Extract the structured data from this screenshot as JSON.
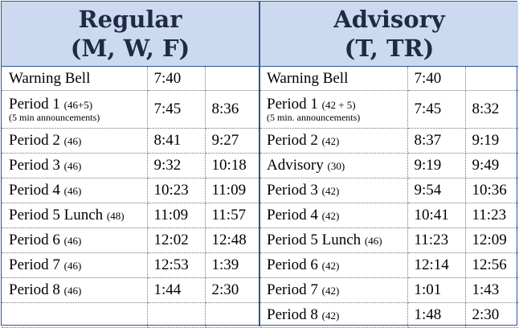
{
  "regular": {
    "title_line1": "Regular",
    "title_line2": "(M, W, F)",
    "rows": [
      {
        "name": "Warning Bell",
        "minutes": "",
        "note": "",
        "start": "7:40",
        "end": ""
      },
      {
        "name": "Period 1",
        "minutes": "(46+5)",
        "note": "(5 min announcements)",
        "start": "7:45",
        "end": "8:36"
      },
      {
        "name": "Period 2",
        "minutes": "(46)",
        "note": "",
        "start": "8:41",
        "end": "9:27"
      },
      {
        "name": "Period 3",
        "minutes": "(46)",
        "note": "",
        "start": "9:32",
        "end": "10:18"
      },
      {
        "name": "Period 4",
        "minutes": "(46)",
        "note": "",
        "start": "10:23",
        "end": "11:09"
      },
      {
        "name": "Period 5 Lunch",
        "minutes": "(48)",
        "note": "",
        "start": "11:09",
        "end": "11:57"
      },
      {
        "name": "Period 6",
        "minutes": "(46)",
        "note": "",
        "start": "12:02",
        "end": "12:48"
      },
      {
        "name": "Period 7",
        "minutes": "(46)",
        "note": "",
        "start": "12:53",
        "end": "1:39"
      },
      {
        "name": "Period 8",
        "minutes": "(46)",
        "note": "",
        "start": "1:44",
        "end": "2:30"
      },
      {
        "name": "",
        "minutes": "",
        "note": "",
        "start": "",
        "end": ""
      }
    ]
  },
  "advisory": {
    "title_line1": "Advisory",
    "title_line2": "(T, TR)",
    "rows": [
      {
        "name": "Warning Bell",
        "minutes": "",
        "note": "",
        "start": "7:40",
        "end": ""
      },
      {
        "name": "Period 1",
        "minutes": "(42 + 5)",
        "note": "(5 min. announcements)",
        "start": "7:45",
        "end": "8:32"
      },
      {
        "name": "Period 2",
        "minutes": "(42)",
        "note": "",
        "start": "8:37",
        "end": "9:19"
      },
      {
        "name": "Advisory",
        "minutes": "(30)",
        "note": "",
        "start": "9:19",
        "end": "9:49"
      },
      {
        "name": "Period 3",
        "minutes": "(42)",
        "note": "",
        "start": "9:54",
        "end": "10:36"
      },
      {
        "name": "Period 4",
        "minutes": "(42)",
        "note": "",
        "start": "10:41",
        "end": "11:23"
      },
      {
        "name": "Period 5 Lunch",
        "minutes": "(46)",
        "note": "",
        "start": "11:23",
        "end": "12:09"
      },
      {
        "name": "Period 6",
        "minutes": "(42)",
        "note": "",
        "start": "12:14",
        "end": "12:56"
      },
      {
        "name": "Period 7",
        "minutes": "(42)",
        "note": "",
        "start": "1:01",
        "end": "1:43"
      },
      {
        "name": "Period 8",
        "minutes": "(42)",
        "note": "",
        "start": "1:48",
        "end": "2:30"
      }
    ]
  }
}
